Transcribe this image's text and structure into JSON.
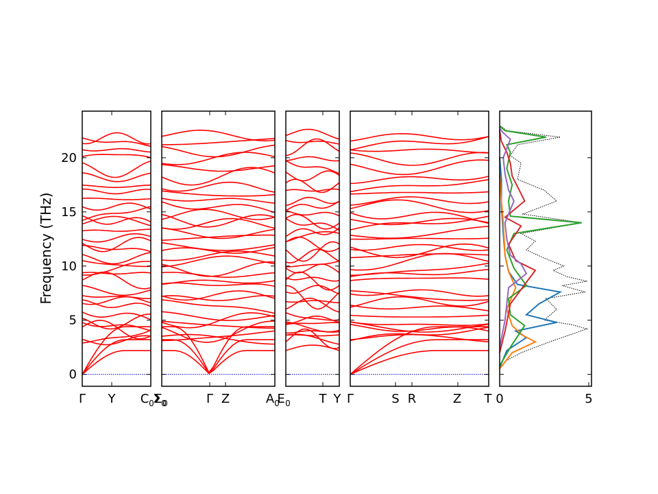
{
  "ylabel": "Frequency (THz)",
  "chart_data": {
    "type": "line",
    "ylabel": "Frequency (THz)",
    "ylim": [
      -1.1,
      24.3
    ],
    "yticks": [
      "0",
      "5",
      "10",
      "15",
      "20"
    ],
    "band_color": "#ff0000",
    "zero_line_color": "#0000cc",
    "band_panels": [
      {
        "tick_labels": [
          "Γ",
          "Y",
          "C",
          "Σ"
        ],
        "tick_subscripts": [
          "",
          "",
          "0",
          "0"
        ]
      },
      {
        "tick_labels": [
          "Σ",
          "Γ",
          "Z",
          "A"
        ],
        "tick_subscripts": [
          "0",
          "",
          "",
          "0"
        ]
      },
      {
        "tick_labels": [
          "E",
          "T",
          "Y"
        ],
        "tick_subscripts": [
          "0",
          "",
          ""
        ]
      },
      {
        "tick_labels": [
          "Γ",
          "S",
          "R",
          "Z",
          "T"
        ],
        "tick_subscripts": [
          "",
          "",
          "",
          "",
          ""
        ]
      }
    ],
    "dos_panel": {
      "xlim": [
        0,
        5
      ],
      "xticks": [
        "0",
        "5"
      ],
      "total_dos": {
        "color": "#000000",
        "style": "dotted",
        "points": [
          [
            0,
            0.5
          ],
          [
            0.3,
            1.2
          ],
          [
            1.2,
            2.0
          ],
          [
            2.8,
            3.0
          ],
          [
            4.9,
            4.2
          ],
          [
            4.0,
            4.6
          ],
          [
            2.5,
            5.0
          ],
          [
            3.2,
            6.0
          ],
          [
            2.6,
            7.0
          ],
          [
            4.8,
            7.6
          ],
          [
            3.5,
            8.2
          ],
          [
            4.9,
            8.6
          ],
          [
            3.8,
            9.0
          ],
          [
            3.0,
            9.6
          ],
          [
            3.6,
            10.0
          ],
          [
            2.4,
            10.8
          ],
          [
            1.5,
            11.5
          ],
          [
            2.0,
            12.3
          ],
          [
            1.2,
            13.0
          ],
          [
            4.6,
            14.0
          ],
          [
            1.3,
            14.8
          ],
          [
            3.2,
            16.0
          ],
          [
            2.5,
            17.0
          ],
          [
            1.0,
            18.0
          ],
          [
            1.2,
            19.5
          ],
          [
            0.6,
            20.2
          ],
          [
            1.0,
            21.2
          ],
          [
            3.4,
            21.9
          ],
          [
            0.4,
            22.5
          ],
          [
            0.0,
            23.0
          ]
        ]
      },
      "projected_dos": [
        {
          "color": "#1f77b4",
          "points": [
            [
              0,
              0.6
            ],
            [
              0.4,
              2.2
            ],
            [
              1.5,
              3.4
            ],
            [
              0.9,
              4.0
            ],
            [
              3.2,
              4.8
            ],
            [
              1.5,
              5.5
            ],
            [
              2.2,
              6.5
            ],
            [
              3.4,
              7.6
            ],
            [
              1.0,
              8.3
            ],
            [
              0.5,
              9.5
            ],
            [
              0.3,
              11.0
            ],
            [
              0.2,
              13.0
            ],
            [
              0.1,
              15.5
            ],
            [
              0.1,
              18.0
            ],
            [
              0,
              20.0
            ]
          ]
        },
        {
          "color": "#ff7f0e",
          "points": [
            [
              0,
              0.5
            ],
            [
              0.7,
              2.0
            ],
            [
              2.0,
              3.0
            ],
            [
              1.3,
              3.6
            ],
            [
              0.7,
              4.5
            ],
            [
              0.4,
              6.0
            ],
            [
              0.9,
              8.0
            ],
            [
              0.5,
              9.5
            ],
            [
              0.3,
              11.0
            ],
            [
              0.2,
              14.0
            ],
            [
              0.1,
              16.0
            ],
            [
              0,
              18.5
            ]
          ]
        },
        {
          "color": "#2ca02c",
          "points": [
            [
              0,
              0.8
            ],
            [
              0.6,
              2.5
            ],
            [
              1.4,
              4.5
            ],
            [
              0.6,
              5.5
            ],
            [
              0.5,
              7.0
            ],
            [
              1.5,
              8.2
            ],
            [
              0.8,
              9.8
            ],
            [
              0.4,
              11.5
            ],
            [
              0.8,
              13.0
            ],
            [
              4.6,
              14.0
            ],
            [
              0.6,
              14.6
            ],
            [
              0.5,
              16.0
            ],
            [
              0.7,
              17.5
            ],
            [
              0.4,
              19.0
            ],
            [
              0.6,
              20.5
            ],
            [
              0.4,
              21.2
            ],
            [
              2.6,
              21.9
            ],
            [
              0.3,
              22.5
            ],
            [
              0,
              22.9
            ]
          ]
        },
        {
          "color": "#d62728",
          "points": [
            [
              0,
              2.0
            ],
            [
              0.3,
              4.0
            ],
            [
              0.6,
              6.5
            ],
            [
              1.5,
              8.5
            ],
            [
              2.0,
              9.6
            ],
            [
              0.9,
              10.5
            ],
            [
              0.5,
              12.0
            ],
            [
              1.2,
              13.7
            ],
            [
              0.3,
              14.5
            ],
            [
              1.4,
              16.0
            ],
            [
              1.1,
              17.0
            ],
            [
              0.7,
              18.3
            ],
            [
              0.6,
              19.5
            ],
            [
              0.4,
              20.5
            ],
            [
              0.1,
              21.5
            ],
            [
              0,
              22.5
            ]
          ]
        },
        {
          "color": "#9467bd",
          "points": [
            [
              0,
              2.5
            ],
            [
              0.3,
              5.0
            ],
            [
              0.5,
              8.0
            ],
            [
              1.5,
              9.3
            ],
            [
              1.2,
              10.2
            ],
            [
              0.6,
              11.0
            ],
            [
              0.4,
              12.5
            ],
            [
              0.3,
              14.0
            ],
            [
              0.8,
              16.0
            ],
            [
              0.5,
              17.0
            ],
            [
              0.3,
              18.5
            ],
            [
              0.2,
              20.0
            ],
            [
              0.6,
              21.7
            ],
            [
              0.2,
              22.3
            ],
            [
              0,
              22.7
            ]
          ]
        }
      ]
    }
  }
}
